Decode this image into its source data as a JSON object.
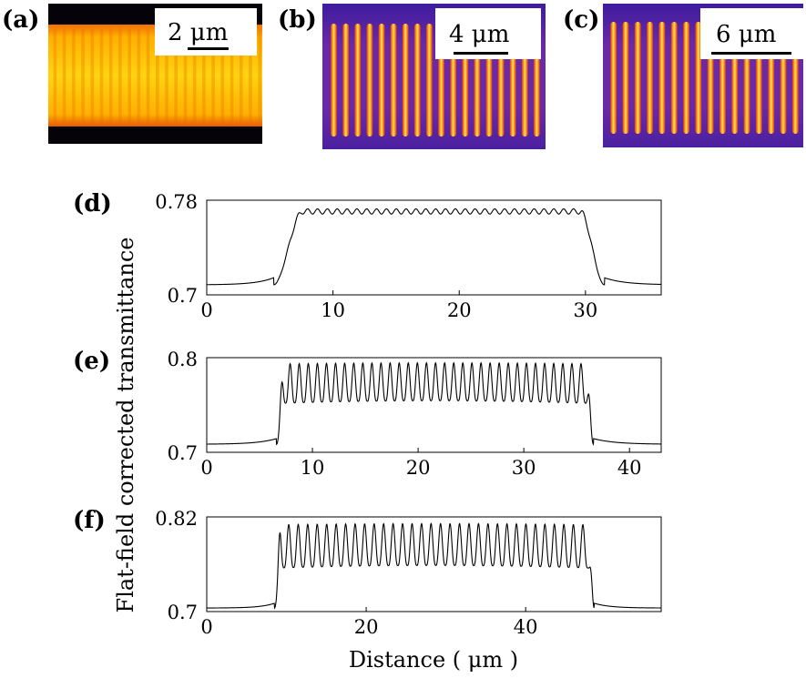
{
  "images": [
    {
      "label": "(a)",
      "scale_bar": "2 μm",
      "stripe_count": 23,
      "colors": {
        "background": "#05020a",
        "edge": "#d23a06",
        "mid": "#ff9f00",
        "peak": "#ffe21a"
      }
    },
    {
      "label": "(b)",
      "scale_bar": "4 μm",
      "stripe_count": 18,
      "colors": {
        "background": "#5a1fb0",
        "edge": "#cc2f4a",
        "mid": "#ff8b00",
        "peak": "#ffe36a"
      }
    },
    {
      "label": "(c)",
      "scale_bar": "6 μm",
      "stripe_count": 16,
      "colors": {
        "background": "#5a1fb0",
        "edge": "#cc2f4a",
        "mid": "#ff8b00",
        "peak": "#ffe36a"
      }
    }
  ],
  "chart_data": [
    {
      "type": "line",
      "label": "(d)",
      "xlim": [
        0,
        36
      ],
      "ylim": [
        0.7,
        0.78
      ],
      "xticks": [
        0,
        10,
        20,
        30
      ],
      "yticks": [
        "0.7",
        "0.78"
      ],
      "profile": {
        "rise_start": 5.3,
        "plateau_start": 7.6,
        "plateau_end": 29.6,
        "fall_end": 31.5,
        "baseline": 0.7085,
        "plateau": 0.7705,
        "period": 0.78,
        "amplitude": 0.0022
      },
      "series": [
        {
          "color": "#000000"
        }
      ]
    },
    {
      "type": "line",
      "label": "(e)",
      "xlim": [
        0,
        43
      ],
      "ylim": [
        0.7,
        0.8
      ],
      "xticks": [
        0,
        10,
        20,
        30,
        40
      ],
      "yticks": [
        "0.7",
        "0.8"
      ],
      "profile": {
        "rise_start": 6.6,
        "plateau_start": 7.3,
        "plateau_end": 35.9,
        "fall_end": 36.6,
        "baseline": 0.7085,
        "low": 0.7545,
        "high": 0.7945,
        "period": 0.86
      },
      "series": [
        {
          "color": "#000000"
        }
      ]
    },
    {
      "type": "line",
      "label": "(f)",
      "xlim": [
        0,
        57
      ],
      "ylim": [
        0.7,
        0.82
      ],
      "xticks": [
        0,
        20,
        40
      ],
      "yticks": [
        "0.7",
        "0.82"
      ],
      "profile": {
        "rise_start": 8.5,
        "plateau_start": 9.3,
        "plateau_end": 47.8,
        "fall_end": 48.6,
        "baseline": 0.7045,
        "low": 0.7585,
        "high": 0.8115,
        "period": 1.19
      },
      "series": [
        {
          "color": "#000000"
        }
      ]
    }
  ],
  "ylabel": "Flat-field corrected transmittance",
  "xlabel": "Distance ( μm )"
}
